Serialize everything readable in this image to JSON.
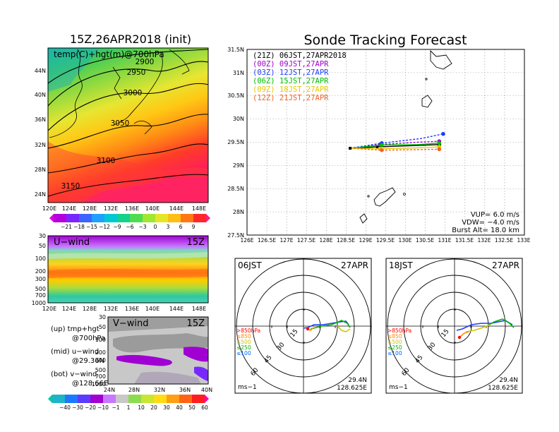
{
  "left": {
    "title": "15Z,26APR2018 (init)",
    "map_label": "temp(C)+hgt(m)@700hPa",
    "lat_ticks": [
      "44N",
      "40N",
      "36N",
      "32N",
      "28N",
      "24N"
    ],
    "lon_ticks": [
      "120E",
      "124E",
      "128E",
      "132E",
      "136E",
      "140E",
      "144E",
      "148E"
    ],
    "contour_labels": [
      "2900",
      "2950",
      "3000",
      "3050",
      "3100",
      "3150"
    ],
    "temp_colorbar": [
      "−21",
      "−18",
      "−15",
      "−12",
      "−9",
      "−6",
      "−3",
      "0",
      "3",
      "6",
      "9"
    ],
    "uwind": {
      "label": "U−wind",
      "time": "15Z",
      "pressure_ticks": [
        "30",
        "50",
        "100",
        "200",
        "300",
        "500",
        "700",
        "1000"
      ],
      "lon_ticks": [
        "120E",
        "124E",
        "128E",
        "132E",
        "136E",
        "140E",
        "144E",
        "148E"
      ]
    },
    "vwind": {
      "label": "V−wind",
      "time": "15Z",
      "pressure_ticks": [
        "30",
        "50",
        "100",
        "200",
        "300",
        "500",
        "700",
        "1000"
      ],
      "lat_ticks": [
        "24N",
        "28N",
        "32N",
        "36N",
        "40N"
      ]
    },
    "notes": [
      "(up) tmp+hgt",
      "@700hPa",
      "(mid) u−wind",
      "@29.36N",
      "(bot) v−wind",
      "@128.66E"
    ],
    "wind_colorbar": [
      "−40",
      "−30",
      "−20",
      "−10",
      "−1",
      "1",
      "10",
      "20",
      "30",
      "40",
      "50",
      "60"
    ]
  },
  "right": {
    "title": "Sonde Tracking Forecast",
    "legend": [
      {
        "label": "(21Z)  06JST,27APR2018",
        "color": "#000000"
      },
      {
        "label": "(00Z)  09JST,27APR",
        "color": "#a000c8"
      },
      {
        "label": "(03Z)  12JST,27APR",
        "color": "#1e3cff"
      },
      {
        "label": "(06Z)  15JST,27APR",
        "color": "#00c000"
      },
      {
        "label": "(09Z)  18JST,27APR",
        "color": "#e6c800"
      },
      {
        "label": "(12Z)  21JST,27APR",
        "color": "#f06428"
      }
    ],
    "info": [
      "VUP=  6.0  m/s",
      "VDW= −4.0  m/s",
      "Burst Alt=  18.0  km"
    ],
    "lat_ticks": [
      "31.5N",
      "31N",
      "30.5N",
      "30N",
      "29.5N",
      "29N",
      "28.5N",
      "28N",
      "27.5N"
    ],
    "lon_ticks": [
      "126E",
      "126.5E",
      "127E",
      "127.5E",
      "128E",
      "128.5E",
      "129E",
      "129.5E",
      "130E",
      "130.5E",
      "131E",
      "131.5E",
      "132E",
      "132.5E",
      "133E"
    ]
  },
  "hodo1": {
    "time": "06JST",
    "date": "27APR",
    "ring_labels": [
      "15",
      "30",
      "45",
      "60"
    ],
    "levels": [
      ">850hPa",
      "≤850",
      "≤500",
      "≤250",
      "≤100"
    ],
    "unit": "ms−1",
    "location": [
      "29.4N",
      "128.625E"
    ]
  },
  "hodo2": {
    "time": "18JST",
    "date": "27APR",
    "ring_labels": [
      "15",
      "30",
      "45",
      "60"
    ],
    "levels": [
      ">850hPa",
      "≤850",
      "≤500",
      "≤250",
      "≤100"
    ],
    "unit": "ms−1",
    "location": [
      "29.4N",
      "128.625E"
    ]
  },
  "colors": {
    "level_gt850": "#ff0000",
    "level_850": "#ff8c00",
    "level_500": "#c8c800",
    "level_250": "#00b400",
    "level_100": "#0064ff"
  },
  "chart_data": [
    {
      "type": "line",
      "title": "Sonde Tracking Forecast",
      "xlim": [
        126,
        133
      ],
      "ylim": [
        27.5,
        31.5
      ],
      "series": [
        {
          "name": "(21Z) 06JST,27APR2018",
          "x": [
            128.6,
            129.3,
            130.3,
            130.85
          ],
          "y": [
            29.37,
            29.4,
            29.43,
            29.45
          ]
        },
        {
          "name": "(00Z) 09JST,27APR",
          "x": [
            128.6,
            129.35,
            130.3,
            130.85
          ],
          "y": [
            29.37,
            29.45,
            29.5,
            29.52
          ]
        },
        {
          "name": "(03Z) 12JST,27APR",
          "x": [
            128.6,
            129.4,
            130.4,
            130.95
          ],
          "y": [
            29.37,
            29.48,
            29.58,
            29.68
          ]
        },
        {
          "name": "(06Z) 15JST,27APR",
          "x": [
            128.6,
            129.4,
            130.3,
            130.85
          ],
          "y": [
            29.37,
            29.44,
            29.45,
            29.48
          ]
        },
        {
          "name": "(09Z) 18JST,27APR",
          "x": [
            128.6,
            129.35,
            130.3,
            130.85
          ],
          "y": [
            29.37,
            29.36,
            29.38,
            29.4
          ]
        },
        {
          "name": "(12Z) 21JST,27APR",
          "x": [
            128.6,
            129.4,
            130.3,
            130.85
          ],
          "y": [
            29.37,
            29.33,
            29.34,
            29.35
          ]
        }
      ]
    }
  ]
}
